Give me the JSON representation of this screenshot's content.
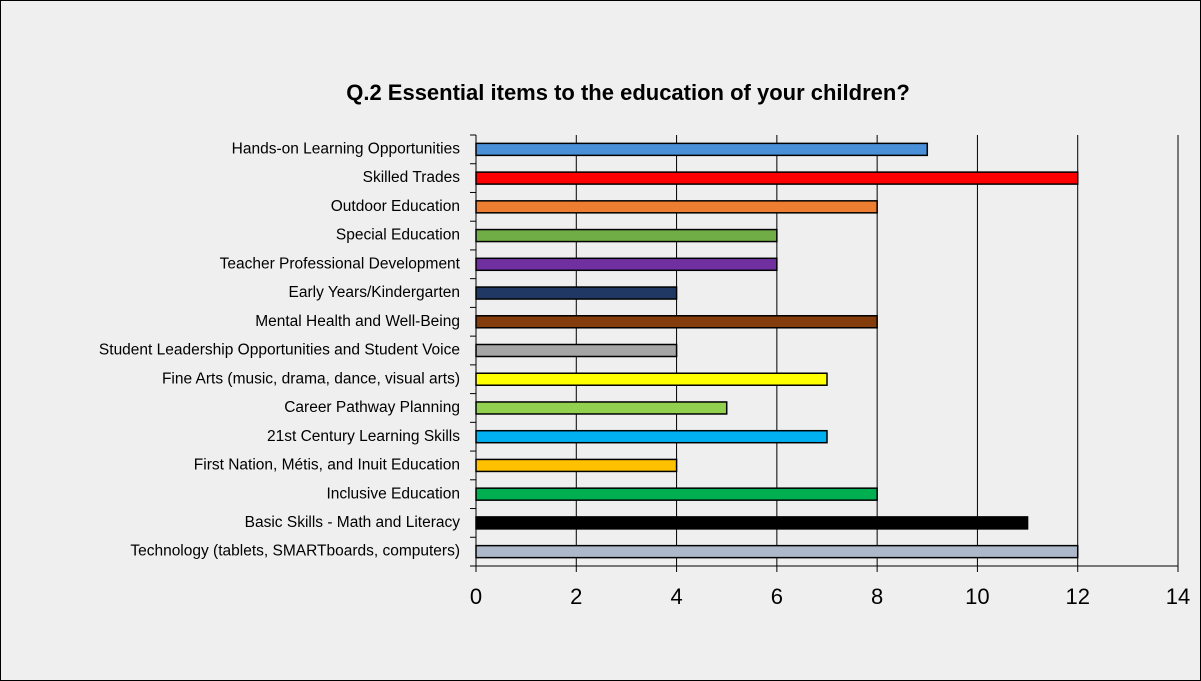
{
  "chart_data": {
    "type": "bar",
    "orientation": "horizontal",
    "title": "Q.2  Essential items to the education of your children?",
    "categories": [
      "Hands-on Learning Opportunities",
      "Skilled Trades",
      "Outdoor Education",
      "Special Education",
      "Teacher Professional Development",
      "Early Years/Kindergarten",
      "Mental Health and Well-Being",
      "Student Leadership Opportunities and Student Voice",
      "Fine Arts (music, drama, dance, visual arts)",
      "Career Pathway Planning",
      "21st Century Learning Skills",
      "First Nation, Métis, and Inuit Education",
      "Inclusive Education",
      "Basic Skills - Math and Literacy",
      "Technology (tablets, SMARTboards, computers)"
    ],
    "values": [
      9,
      12,
      8,
      6,
      6,
      4,
      8,
      4,
      7,
      5,
      7,
      4,
      8,
      11,
      12
    ],
    "colors": [
      "#4a90d9",
      "#ff0000",
      "#ed7d31",
      "#70ad47",
      "#7030a0",
      "#1f3864",
      "#843c0c",
      "#a5a5a5",
      "#ffff00",
      "#92d050",
      "#00b0f0",
      "#ffc000",
      "#00b050",
      "#000000",
      "#adb9ca"
    ],
    "xlim": [
      0,
      14
    ],
    "xticks": [
      0,
      2,
      4,
      6,
      8,
      10,
      12,
      14
    ],
    "grid": true
  }
}
